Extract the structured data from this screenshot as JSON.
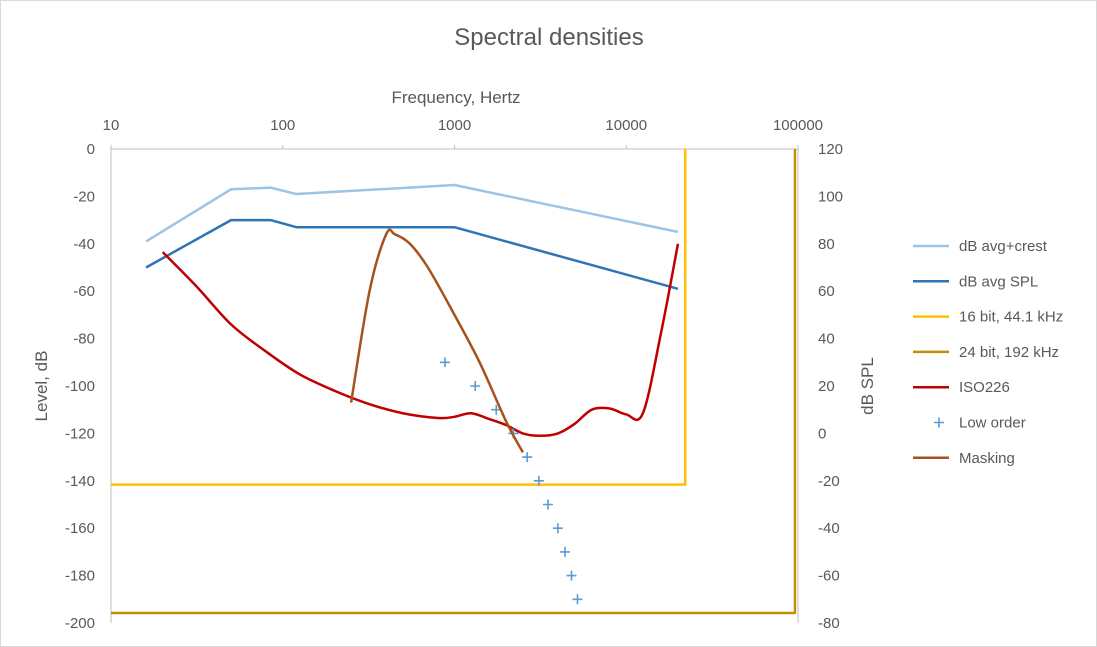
{
  "chart_data": {
    "type": "line",
    "title": "Spectral densities",
    "x_axis": {
      "label": "Frequency, Hertz",
      "position": "top",
      "scale": "log",
      "range": [
        10,
        100000
      ],
      "ticks": [
        10,
        100,
        1000,
        10000,
        100000
      ],
      "tick_labels": [
        "10",
        "100",
        "1000",
        "10000",
        "100000"
      ]
    },
    "y_axis_left": {
      "label": "Level, dB",
      "range": [
        -200,
        0
      ],
      "ticks": [
        0,
        -20,
        -40,
        -60,
        -80,
        -100,
        -120,
        -140,
        -160,
        -180,
        -200
      ],
      "tick_labels": [
        "0",
        "-20",
        "-40",
        "-60",
        "-80",
        "-100",
        "-120",
        "-140",
        "-160",
        "-180",
        "-200"
      ]
    },
    "y_axis_right": {
      "label": "dB SPL",
      "range": [
        -80,
        120
      ],
      "ticks": [
        120,
        100,
        80,
        60,
        40,
        20,
        0,
        -20,
        -40,
        -60,
        -80
      ],
      "tick_labels": [
        "120",
        "100",
        "80",
        "60",
        "40",
        "20",
        "0",
        "-20",
        "-40",
        "-60",
        "-80"
      ]
    },
    "grid": false,
    "legend_position": "right",
    "series": [
      {
        "name": "dB avg+crest",
        "axis": "right",
        "style": "line",
        "color": "#9dc3e6",
        "x": [
          16,
          50,
          85,
          120,
          1000,
          20000
        ],
        "y": [
          81,
          103,
          103.7,
          101,
          104.8,
          85
        ]
      },
      {
        "name": "dB avg SPL",
        "axis": "right",
        "style": "line",
        "color": "#2e75b6",
        "x": [
          16,
          50,
          85,
          120,
          1000,
          20000
        ],
        "y": [
          70,
          90,
          90,
          87,
          87,
          61
        ]
      },
      {
        "name": "16 bit, 44.1 kHz",
        "axis": "left",
        "style": "line",
        "color": "#ffc000",
        "x": [
          10,
          22050,
          22050
        ],
        "y": [
          -141.6,
          -141.6,
          0
        ]
      },
      {
        "name": "24 bit, 192 kHz",
        "axis": "left",
        "style": "line",
        "color": "#bf9000",
        "x": [
          10,
          96000,
          96000
        ],
        "y": [
          -195.8,
          -195.8,
          0
        ]
      },
      {
        "name": "ISO226",
        "axis": "right",
        "style": "line",
        "color": "#c00000",
        "x": [
          20,
          31.5,
          50,
          80,
          125,
          200,
          315,
          500,
          800,
          1000,
          1250,
          1600,
          2000,
          2500,
          3150,
          4000,
          5000,
          6300,
          8000,
          10000,
          12500,
          16000,
          20000
        ],
        "y": [
          76.5,
          62,
          46,
          34.5,
          25,
          18,
          12.5,
          8.5,
          6.5,
          7,
          8.5,
          6,
          3.5,
          0,
          -1,
          0,
          4,
          10,
          10.5,
          8,
          8.5,
          43,
          80
        ]
      },
      {
        "name": "Low order",
        "axis": "right",
        "style": "marker",
        "marker": "+",
        "color": "#5b9bd5",
        "x": [
          880,
          1320,
          1750,
          2200,
          2650,
          3100,
          3500,
          4000,
          4400,
          4800,
          5200
        ],
        "y": [
          30,
          20,
          10,
          0,
          -10,
          -20,
          -30,
          -40,
          -50,
          -60,
          -70
        ]
      },
      {
        "name": "Masking",
        "axis": "right",
        "style": "line",
        "color": "#a5521b",
        "x": [
          250,
          320,
          400,
          450,
          550,
          700,
          1000,
          1400,
          2000,
          2500
        ],
        "y": [
          13,
          60,
          84,
          84,
          80,
          70,
          50,
          30,
          5,
          -8
        ]
      }
    ]
  }
}
